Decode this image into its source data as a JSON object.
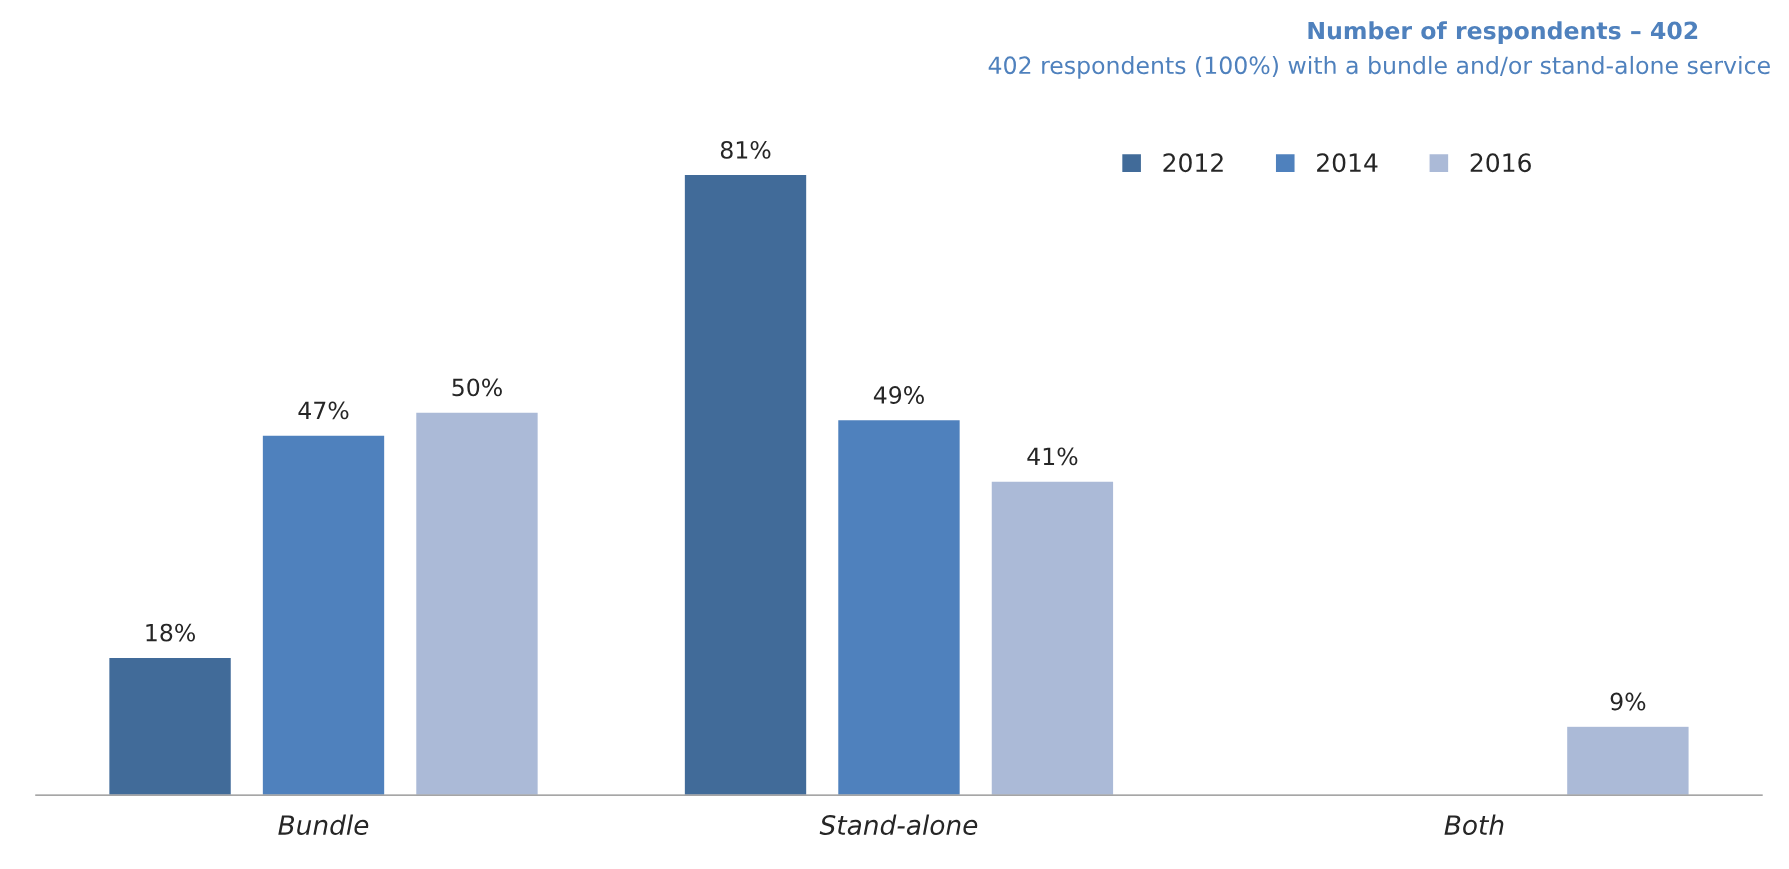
{
  "chart_data": {
    "type": "bar",
    "title": "Number of respondents – 402",
    "subtitle": "402 respondents (100%) with a bundle and/or stand-alone service",
    "categories": [
      "Bundle",
      "Stand-alone",
      "Both"
    ],
    "series": [
      {
        "name": "2012",
        "color": "#416b99",
        "values": [
          18,
          81,
          null
        ],
        "value_labels": [
          "18%",
          "81%",
          null
        ]
      },
      {
        "name": "2014",
        "color": "#4f81bd",
        "values": [
          47,
          49,
          null
        ],
        "value_labels": [
          "47%",
          "49%",
          null
        ]
      },
      {
        "name": "2016",
        "color": "#abbad7",
        "values": [
          50,
          41,
          9
        ],
        "value_labels": [
          "50%",
          "41%",
          "9%"
        ]
      }
    ],
    "legend": "top right",
    "grid": false
  }
}
